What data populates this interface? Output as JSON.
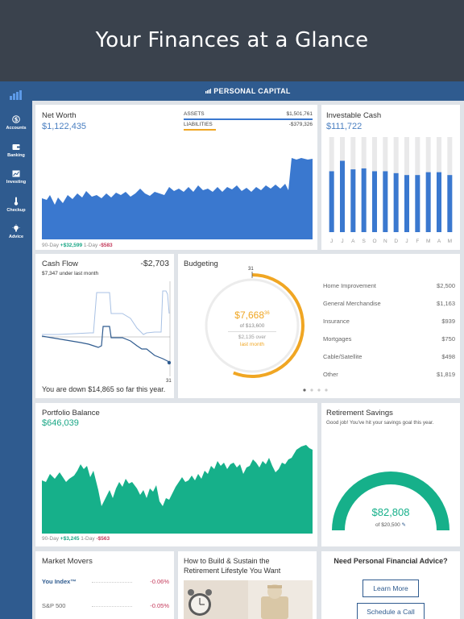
{
  "hero": {
    "title": "Your Finances at a Glance"
  },
  "app": {
    "brand": "PERSONAL CAPITAL"
  },
  "sidebar": {
    "items": [
      {
        "label": "Accounts",
        "icon": "dollar-circle-icon"
      },
      {
        "label": "Banking",
        "icon": "wallet-icon"
      },
      {
        "label": "Investing",
        "icon": "chart-icon"
      },
      {
        "label": "Checkup",
        "icon": "thermometer-icon"
      },
      {
        "label": "Advice",
        "icon": "lightbulb-icon"
      }
    ]
  },
  "net_worth": {
    "title": "Net Worth",
    "value": "$1,122,435",
    "assets_label": "ASSETS",
    "assets_value": "$1,501,761",
    "liabilities_label": "LIABILITIES",
    "liabilities_value": "-$379,326",
    "period_90": "90-Day",
    "change_90": "+$32,599",
    "period_1": "1-Day",
    "change_1": "-$583"
  },
  "investable_cash": {
    "title": "Investable Cash",
    "value": "$111,722",
    "months": [
      "J",
      "J",
      "A",
      "S",
      "O",
      "N",
      "D",
      "J",
      "F",
      "M",
      "A",
      "M"
    ],
    "levels": [
      0.64,
      0.75,
      0.66,
      0.67,
      0.64,
      0.64,
      0.62,
      0.6,
      0.6,
      0.63,
      0.63,
      0.6
    ]
  },
  "cash_flow": {
    "title": "Cash Flow",
    "value": "-$2,703",
    "subtitle": "$7,347 under last month",
    "day_label": "31",
    "footer": "You are down $14,865 so far this year."
  },
  "budgeting": {
    "title": "Budgeting",
    "day_label": "31",
    "spent": "$7,668",
    "spent_cents": "36",
    "of_total": "of $13,600",
    "over_amount": "$2,135 over",
    "over_text": "last month",
    "progress": 0.56,
    "categories": [
      {
        "name": "Home Improvement",
        "amount": "$2,500"
      },
      {
        "name": "General Merchandise",
        "amount": "$1,163"
      },
      {
        "name": "Insurance",
        "amount": "$939"
      },
      {
        "name": "Mortgages",
        "amount": "$750"
      },
      {
        "name": "Cable/Satellite",
        "amount": "$498"
      },
      {
        "name": "Other",
        "amount": "$1,819"
      }
    ]
  },
  "portfolio": {
    "title": "Portfolio Balance",
    "value": "$646,039",
    "period_90": "90-Day",
    "change_90": "+$3,245",
    "period_1": "1-Day",
    "change_1": "-$563"
  },
  "retirement": {
    "title": "Retirement Savings",
    "message": "Good job!  You've hit your savings goal this year.",
    "value": "$82,808",
    "of_goal": "of $20,500"
  },
  "market_movers": {
    "title": "Market Movers",
    "rows": [
      {
        "name": "You Index™",
        "change": "-0.06%"
      },
      {
        "name": "S&P 500",
        "change": "-0.05%"
      }
    ]
  },
  "article": {
    "title_line1": "How to Build & Sustain the",
    "title_line2": "Retirement Lifestyle You Want"
  },
  "advice": {
    "title": "Need Personal Financial Advice?",
    "learn_more": "Learn More",
    "schedule": "Schedule a Call"
  },
  "colors": {
    "brand": "#2f5b8f",
    "blue": "#3a78cf",
    "green": "#16b08a",
    "orange": "#f0a623",
    "red": "#c43a5b"
  }
}
